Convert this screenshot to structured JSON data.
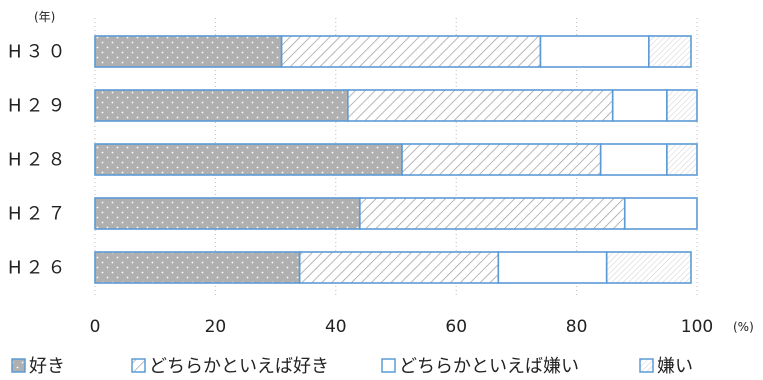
{
  "chart_data": {
    "type": "bar",
    "orientation": "horizontal",
    "stacked": true,
    "y_unit_label": "(年)",
    "x_unit_label": "(%)",
    "categories": [
      "H３０",
      "H２９",
      "H２８",
      "H２７",
      "H２６"
    ],
    "series": [
      {
        "name": "好き",
        "values": [
          31,
          42,
          51,
          44,
          34
        ],
        "color": "#b0b0b0",
        "pattern": "dots"
      },
      {
        "name": "どちらかといえば好き",
        "values": [
          43,
          44,
          33,
          44,
          33
        ],
        "color": "#ffffff",
        "pattern": "diagonal-hatch"
      },
      {
        "name": "どちらかといえば嫌い",
        "values": [
          18,
          9,
          11,
          12,
          18
        ],
        "color": "#ffffff",
        "pattern": "none"
      },
      {
        "name": "嫌い",
        "values": [
          7,
          5,
          5,
          0,
          14
        ],
        "color": "#ffffff",
        "pattern": "fine-hatch"
      }
    ],
    "xlim": [
      0,
      100
    ],
    "xticks": [
      0,
      20,
      40,
      60,
      80,
      100
    ],
    "xtick_labels": [
      "0",
      "20",
      "40",
      "60",
      "80",
      "100"
    ],
    "grid": true,
    "legend_position": "bottom",
    "bar_edge_color": "#5b9bd5"
  }
}
